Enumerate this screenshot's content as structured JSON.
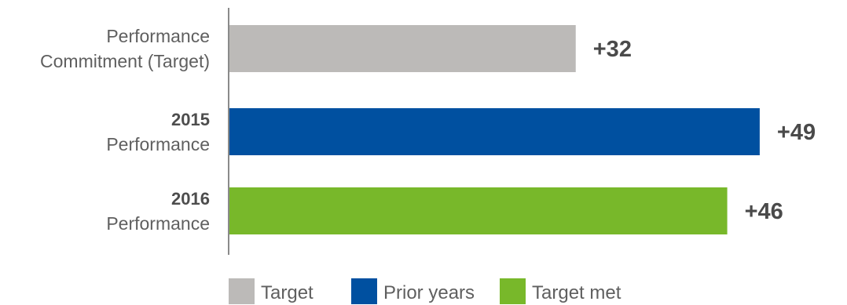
{
  "chart_data": {
    "type": "bar",
    "orientation": "horizontal",
    "categories": [
      {
        "line1": "Performance",
        "line2": "Commitment (Target)",
        "line1_bold": false
      },
      {
        "line1": "2015",
        "line2": "Performance",
        "line1_bold": true
      },
      {
        "line1": "2016",
        "line2": "Performance",
        "line1_bold": true
      }
    ],
    "values": [
      32,
      49,
      46
    ],
    "value_labels": [
      "+32",
      "+49",
      "+46"
    ],
    "bar_colors": [
      "#bcbab8",
      "#0050a0",
      "#78b82a"
    ],
    "xlim": [
      0,
      53
    ],
    "grid": false,
    "legend": {
      "placement": "bottom-left",
      "items": [
        {
          "label": "Target",
          "color": "#bcbab8"
        },
        {
          "label": "Prior years",
          "color": "#0050a0"
        },
        {
          "label": "Target met",
          "color": "#78b82a"
        }
      ]
    }
  }
}
